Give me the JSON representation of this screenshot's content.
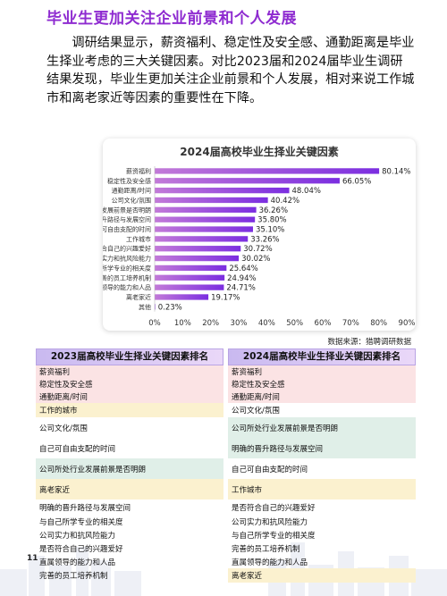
{
  "page": {
    "title": "毕业生更加关注企业前景和个人发展",
    "intro": "调研结果显示，薪资福利、稳定性及安全感、通勤距离是毕业生择业考虑的三大关键因素。对比2023届和2024届毕业生调研结果发现，毕业生更加关注企业前景和个人发展，相对来说工作城市和离老家近等因素的重要性在下降。",
    "source": "数据来源：猎聘调研数据",
    "page_number": "11"
  },
  "colors": {
    "title": "#8e2bd0",
    "bar_start": "#c27ad8",
    "bar_end": "#7b2ee0",
    "row_pink": "#fbe3e4",
    "row_yellow": "#fbf1cf",
    "row_green": "#e0efe8"
  },
  "chart_data": {
    "type": "bar",
    "orientation": "horizontal",
    "title": "2024届高校毕业生择业关键因素",
    "categories": [
      "薪资福利",
      "稳定性及安全感",
      "通勤距离/时间",
      "公司文化/氛围",
      "公司所处行业发展前景是否明朗",
      "明确的晋升路径与发展空间",
      "自己可自由支配的时间",
      "工作城市",
      "是否符合自己的兴趣爱好",
      "公司实力和抗风险能力",
      "与自己所学专业的相关度",
      "完善的员工培养机制",
      "直属领导的能力和人品",
      "离老家近",
      "其他"
    ],
    "values": [
      80.14,
      66.05,
      48.04,
      40.42,
      36.26,
      35.8,
      35.1,
      33.26,
      30.72,
      30.02,
      25.64,
      24.94,
      24.71,
      19.17,
      0.23
    ],
    "value_labels": [
      "80.14%",
      "66.05%",
      "48.04%",
      "40.42%",
      "36.26%",
      "35.80%",
      "35.10%",
      "33.26%",
      "30.72%",
      "30.02%",
      "25.64%",
      "24.94%",
      "24.71%",
      "19.17%",
      "0.23%"
    ],
    "xticks": [
      "0%",
      "10%",
      "20%",
      "30%",
      "40%",
      "50%",
      "60%",
      "70%",
      "80%",
      "90%"
    ],
    "xlim": [
      0,
      90
    ],
    "grid": false
  },
  "table_2023": {
    "header": "2023届高校毕业生择业关键因素排名",
    "rows": [
      "薪资福利",
      "稳定性及安全感",
      "通勤距离/时间",
      "工作的城市",
      "公司文化/氛围",
      "自己可自由支配的时间",
      "公司所处行业发展前景是否明朗",
      "离老家近",
      "明确的晋升路径与发展空间",
      "与自己所学专业的相关度",
      "公司实力和抗风险能力",
      "是否符合自己的兴趣爱好",
      "直属领导的能力和人品",
      "完善的员工培养机制"
    ],
    "row_colors": [
      "pink",
      "pink",
      "pink",
      "yellow",
      "none",
      "none",
      "green",
      "yellow",
      "none",
      "none",
      "none",
      "none",
      "none",
      "none"
    ]
  },
  "table_2024": {
    "header": "2024届高校毕业生择业关键因素排名",
    "rows": [
      "薪资福利",
      "稳定性及安全感",
      "通勤距离/时间",
      "公司文化/氛围",
      "公司所处行业发展前景是否明朗",
      "明确的晋升路径与发展空间",
      "自己可自由支配的时间",
      "工作城市",
      "是否符合自己的兴趣爱好",
      "公司实力和抗风险能力",
      "与自己所学专业的相关度",
      "完善的员工培养机制",
      "直属领导的能力和人品",
      "离老家近"
    ],
    "row_colors": [
      "pink",
      "pink",
      "pink",
      "none",
      "green",
      "green",
      "none",
      "yellow",
      "none",
      "none",
      "none",
      "none",
      "none",
      "yellow"
    ]
  }
}
